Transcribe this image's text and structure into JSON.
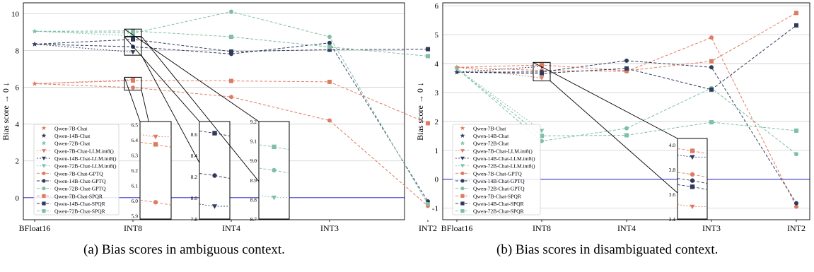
{
  "figure": {
    "captions": [
      "(a) Bias scores in ambiguous context.",
      "(b) Bias scores in disambiguated context."
    ]
  },
  "chart_data": [
    {
      "type": "line",
      "panel": "a",
      "title": "",
      "caption": "(a) Bias scores in ambiguous context.",
      "xlabel": "",
      "ylabel": "Bias score → 0 ↓",
      "categories": [
        "BFloat16",
        "INT8",
        "INT4",
        "INT3",
        "INT2"
      ],
      "ylim": [
        -1.2,
        10.6
      ],
      "yticks": [
        0,
        2,
        4,
        6,
        8,
        10
      ],
      "grid": true,
      "reference_line": 0,
      "legend_position": "center-left",
      "series": [
        {
          "name": "Qwen-7B-Chat",
          "model": "7B",
          "method": "BFloat16",
          "values": [
            6.2,
            null,
            null,
            null,
            null
          ]
        },
        {
          "name": "Qwen-14B-Chat",
          "model": "14B",
          "method": "BFloat16",
          "values": [
            8.35,
            null,
            null,
            null,
            null
          ]
        },
        {
          "name": "Qwen-72B-Chat",
          "model": "72B",
          "method": "BFloat16",
          "values": [
            9.05,
            null,
            null,
            null,
            null
          ]
        },
        {
          "name": "Qwen-7B-Chat-LLM.int8()",
          "model": "7B",
          "method": "LLM.int8",
          "values": [
            6.2,
            6.42,
            null,
            null,
            null
          ]
        },
        {
          "name": "Qwen-14B-Chat-LLM.int8()",
          "model": "14B",
          "method": "LLM.int8",
          "values": [
            8.35,
            7.92,
            null,
            null,
            null
          ]
        },
        {
          "name": "Qwen-72B-Chat-LLM.int8()",
          "model": "72B",
          "method": "LLM.int8",
          "values": [
            9.05,
            8.81,
            null,
            null,
            null
          ]
        },
        {
          "name": "Qwen-7B-Chat-GPTQ",
          "model": "7B",
          "method": "GPTQ",
          "values": [
            6.2,
            5.99,
            5.48,
            4.2,
            -0.45
          ]
        },
        {
          "name": "Qwen-14B-Chat-GPTQ",
          "model": "14B",
          "method": "GPTQ",
          "values": [
            8.35,
            8.21,
            7.82,
            8.42,
            -0.2
          ]
        },
        {
          "name": "Qwen-72B-Chat-GPTQ",
          "model": "72B",
          "method": "GPTQ",
          "values": [
            9.05,
            8.95,
            10.12,
            8.75,
            -0.35
          ]
        },
        {
          "name": "Qwen-7B-Chat-SPQR",
          "model": "7B",
          "method": "SPQR",
          "values": [
            6.2,
            6.37,
            6.35,
            6.3,
            4.05
          ]
        },
        {
          "name": "Qwen-14B-Chat-SPQR",
          "model": "14B",
          "method": "SPQR",
          "values": [
            8.35,
            8.61,
            7.95,
            8.05,
            8.08
          ]
        },
        {
          "name": "Qwen-72B-Chat-SPQR",
          "model": "72B",
          "method": "SPQR",
          "values": [
            9.05,
            9.07,
            8.75,
            8.2,
            7.7
          ]
        }
      ],
      "insets": [
        {
          "category": "INT8",
          "ylim": [
            5.88,
            6.52
          ],
          "yticks": [
            "5.9",
            "6.0",
            "6.1",
            "6.2",
            "6.3",
            "6.4",
            "6.5"
          ]
        },
        {
          "category": "INT8",
          "ylim": [
            7.8,
            8.72
          ],
          "yticks": [
            "7.8",
            "8.0",
            "8.2",
            "8.4",
            "8.6"
          ]
        },
        {
          "category": "INT8",
          "ylim": [
            8.7,
            9.2
          ],
          "yticks": [
            "8.7",
            "8.8",
            "8.9",
            "9.0",
            "9.1",
            "9.2"
          ]
        }
      ]
    },
    {
      "type": "line",
      "panel": "b",
      "title": "",
      "caption": "(b) Bias scores in disambiguated context.",
      "xlabel": "",
      "ylabel": "Bias score → 0 ↓",
      "categories": [
        "BFloat16",
        "INT8",
        "INT4",
        "INT3",
        "INT2"
      ],
      "ylim": [
        -1.4,
        6.1
      ],
      "yticks": [
        -1,
        0,
        1,
        2,
        3,
        4,
        5,
        6
      ],
      "grid": true,
      "reference_line": 0,
      "legend_position": "center-left",
      "series": [
        {
          "name": "Qwen-7B-Chat",
          "model": "7B",
          "method": "BFloat16",
          "values": [
            3.87,
            null,
            null,
            null,
            null
          ]
        },
        {
          "name": "Qwen-14B-Chat",
          "model": "14B",
          "method": "BFloat16",
          "values": [
            3.7,
            null,
            null,
            null,
            null
          ]
        },
        {
          "name": "Qwen-72B-Chat",
          "model": "72B",
          "method": "BFloat16",
          "values": [
            3.83,
            null,
            null,
            null,
            null
          ]
        },
        {
          "name": "Qwen-7B-Chat-LLM.int8()",
          "model": "7B",
          "method": "LLM.int8",
          "values": [
            3.87,
            3.5,
            null,
            null,
            null
          ]
        },
        {
          "name": "Qwen-14B-Chat-LLM.int8()",
          "model": "14B",
          "method": "LLM.int8",
          "values": [
            3.7,
            3.9,
            null,
            null,
            null
          ]
        },
        {
          "name": "Qwen-72B-Chat-LLM.int8()",
          "model": "72B",
          "method": "LLM.int8",
          "values": [
            3.83,
            1.68,
            null,
            null,
            null
          ]
        },
        {
          "name": "Qwen-7B-Chat-GPTQ",
          "model": "7B",
          "method": "GPTQ",
          "values": [
            3.87,
            3.76,
            3.73,
            4.9,
            -0.95
          ]
        },
        {
          "name": "Qwen-14B-Chat-GPTQ",
          "model": "14B",
          "method": "GPTQ",
          "values": [
            3.7,
            3.71,
            4.1,
            3.87,
            -0.83
          ]
        },
        {
          "name": "Qwen-72B-Chat-GPTQ",
          "model": "72B",
          "method": "GPTQ",
          "values": [
            3.83,
            1.32,
            1.76,
            3.15,
            0.87
          ]
        },
        {
          "name": "Qwen-7B-Chat-SPQR",
          "model": "7B",
          "method": "SPQR",
          "values": [
            3.87,
            3.95,
            3.75,
            4.08,
            5.75
          ]
        },
        {
          "name": "Qwen-14B-Chat-SPQR",
          "model": "14B",
          "method": "SPQR",
          "values": [
            3.7,
            3.66,
            3.83,
            3.1,
            5.32
          ]
        },
        {
          "name": "Qwen-72B-Chat-SPQR",
          "model": "72B",
          "method": "SPQR",
          "values": [
            3.83,
            1.5,
            1.52,
            1.97,
            1.68
          ]
        }
      ],
      "insets": [
        {
          "category": "INT8",
          "ylim": [
            3.4,
            4.05
          ],
          "yticks": [
            "3.4",
            "3.6",
            "3.8",
            "4.0"
          ]
        }
      ]
    }
  ],
  "colors": {
    "7B": "#e07b63",
    "14B": "#2f3a5c",
    "72B": "#7fbfa6",
    "reference_line": "#5a5ad6",
    "grid": "#cfcfcf"
  },
  "markers": {
    "BFloat16": "star",
    "LLM.int8": "triangle-down",
    "GPTQ": "circle",
    "SPQR": "square"
  }
}
